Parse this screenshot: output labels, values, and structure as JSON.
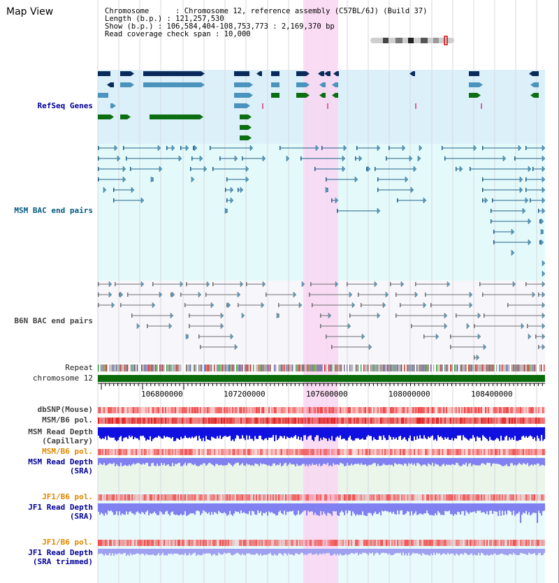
{
  "header": {
    "title": "Map View",
    "chromosome_line": "Chromosome      : Chromosome 12, reference assembly (C57BL/6J) (Build 37)",
    "length_line": "Length (b.p.) : 121,257,530",
    "show_line": "Show (b.p.) : 106,584,404-108,753,773 : 2,169,370 bp",
    "coverage_line": "Read coverage check span : 10,000"
  },
  "tracks": {
    "refseq": "RefSeq Genes",
    "msm_bac": "MSM BAC end pairs",
    "b6n_bac": "B6N BAC end pairs",
    "repeat": "Repeat",
    "chromosome": "chromosome 12",
    "dbsnp": "dbSNP(Mouse)",
    "msm_b6_pol_1": "MSM/B6 pol.",
    "msm_read_depth_cap_1": "MSM Read Depth",
    "msm_read_depth_cap_2": "(Capillary)",
    "msm_b6_pol_2": "MSM/B6 pol.",
    "msm_read_depth_sra_1": "MSM Read Depth",
    "msm_read_depth_sra_2": "(SRA)",
    "jf1_b6_pol_1": "JF1/B6 pol.",
    "jf1_read_depth_sra_1": "JF1 Read Depth",
    "jf1_read_depth_sra_2": "(SRA)",
    "jf1_b6_pol_2": "JF1/B6 pol.",
    "jf1_read_depth_trim_1": "JF1 Read Depth",
    "jf1_read_depth_trim_2": "(SRA trimmed)"
  },
  "axis": {
    "ticks": [
      "106800000",
      "107200000",
      "107600000",
      "108000000",
      "108400000"
    ]
  },
  "colors": {
    "highlight": "#f9d6f2",
    "refseq_bg": "#dcf0fa",
    "msm_bg": "#e4fafa",
    "gene_navy": "#0a2a5c",
    "gene_blue": "#4a93bd",
    "gene_green": "#0c6e12",
    "chromosome_bar": "#0b6b0b",
    "snp_red": "#f04040",
    "depth_blue": "#1010e0",
    "depth_light": "#8080f0"
  }
}
